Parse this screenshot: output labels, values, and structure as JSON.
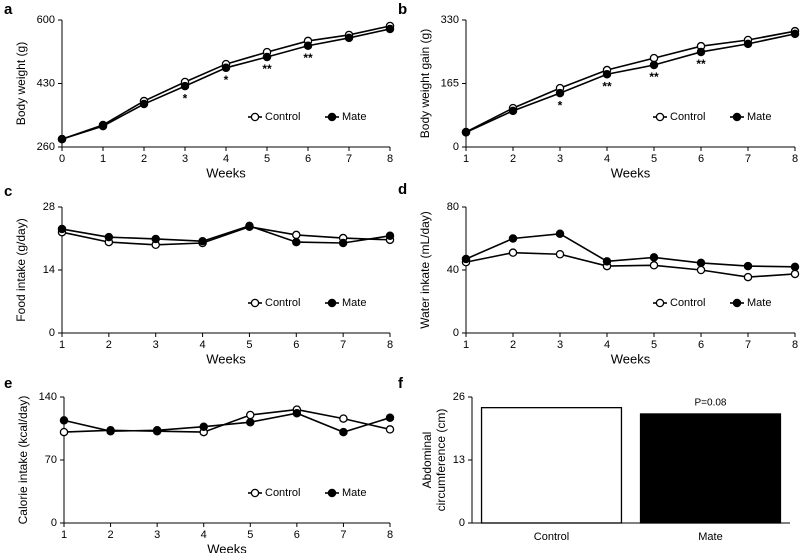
{
  "chart_data": [
    {
      "type": "line",
      "label": "a",
      "ylabel": "Body weight (g)",
      "xlabel": "Weeks",
      "x": [
        0,
        1,
        2,
        3,
        4,
        5,
        6,
        7,
        8
      ],
      "xlim": [
        0,
        8
      ],
      "xticks": [
        0,
        1,
        2,
        3,
        4,
        5,
        6,
        7,
        8
      ],
      "ylim": [
        260,
        600
      ],
      "yticks": [
        260,
        430,
        600
      ],
      "legend": "lower right",
      "series": [
        {
          "name": "Control",
          "color": "#000000",
          "marker_fill": "#ffffff",
          "values": [
            281,
            319,
            383,
            434,
            482,
            514,
            544,
            560,
            584
          ]
        },
        {
          "name": "Mate",
          "color": "#000000",
          "marker_fill": "#000000",
          "values": [
            281,
            316,
            375,
            423,
            472,
            501,
            531,
            552,
            576
          ]
        }
      ],
      "annotations": [
        {
          "x": 3,
          "text": "*"
        },
        {
          "x": 4,
          "text": "*"
        },
        {
          "x": 5,
          "text": "**"
        },
        {
          "x": 6,
          "text": "**"
        }
      ]
    },
    {
      "type": "line",
      "label": "b",
      "ylabel": "Body weight gain (g)",
      "xlabel": "Weeks",
      "x": [
        1,
        2,
        3,
        4,
        5,
        6,
        7,
        8
      ],
      "xlim": [
        1,
        8
      ],
      "xticks": [
        1,
        2,
        3,
        4,
        5,
        6,
        7,
        8
      ],
      "ylim": [
        0,
        330
      ],
      "yticks": [
        0,
        165,
        330
      ],
      "legend": "lower right",
      "series": [
        {
          "name": "Control",
          "color": "#000000",
          "marker_fill": "#ffffff",
          "values": [
            39,
            101,
            153,
            200,
            231,
            262,
            278,
            301
          ]
        },
        {
          "name": "Mate",
          "color": "#000000",
          "marker_fill": "#000000",
          "values": [
            38,
            94,
            140,
            189,
            213,
            247,
            268,
            294
          ]
        }
      ],
      "annotations": [
        {
          "x": 3,
          "text": "*"
        },
        {
          "x": 4,
          "text": "**"
        },
        {
          "x": 5,
          "text": "**"
        },
        {
          "x": 6,
          "text": "**"
        }
      ]
    },
    {
      "type": "line",
      "label": "c",
      "ylabel": "Food intake (g/day)",
      "xlabel": "Weeks",
      "x": [
        1,
        2,
        3,
        4,
        5,
        6,
        7,
        8
      ],
      "xlim": [
        1,
        8
      ],
      "xticks": [
        1,
        2,
        3,
        4,
        5,
        6,
        7,
        8
      ],
      "ylim": [
        0,
        28
      ],
      "yticks": [
        0,
        14,
        28
      ],
      "legend": "lower right",
      "series": [
        {
          "name": "Control",
          "color": "#000000",
          "marker_fill": "#ffffff",
          "values": [
            22.4,
            20.2,
            19.6,
            20.0,
            23.6,
            21.8,
            21.1,
            20.7
          ]
        },
        {
          "name": "Mate",
          "color": "#000000",
          "marker_fill": "#000000",
          "values": [
            23.1,
            21.3,
            20.9,
            20.4,
            23.8,
            20.2,
            20.0,
            21.6
          ]
        }
      ]
    },
    {
      "type": "line",
      "label": "d",
      "ylabel": "Water inkate (mL/day)",
      "xlabel": "Weeks",
      "x": [
        1,
        2,
        3,
        4,
        5,
        6,
        7,
        8
      ],
      "xlim": [
        1,
        8
      ],
      "xticks": [
        1,
        2,
        3,
        4,
        5,
        6,
        7,
        8
      ],
      "ylim": [
        0,
        80
      ],
      "yticks": [
        0,
        40,
        80
      ],
      "legend": "lower right",
      "series": [
        {
          "name": "Control",
          "color": "#000000",
          "marker_fill": "#ffffff",
          "values": [
            45,
            51,
            50,
            42.5,
            43,
            40,
            35.5,
            37.5
          ]
        },
        {
          "name": "Mate",
          "color": "#000000",
          "marker_fill": "#000000",
          "values": [
            47,
            60,
            63,
            45.5,
            48,
            44.5,
            42.5,
            42
          ]
        }
      ]
    },
    {
      "type": "line",
      "label": "e",
      "ylabel": "Calorie intake (kcal/day)",
      "xlabel": "Weeks",
      "x": [
        1,
        2,
        3,
        4,
        5,
        6,
        7,
        8
      ],
      "xlim": [
        1,
        8
      ],
      "xticks": [
        1,
        2,
        3,
        4,
        5,
        6,
        7,
        8
      ],
      "ylim": [
        0,
        140
      ],
      "yticks": [
        0,
        70,
        140
      ],
      "legend": "lower right",
      "series": [
        {
          "name": "Control",
          "color": "#000000",
          "marker_fill": "#ffffff",
          "values": [
            101,
            103,
            102,
            101,
            120,
            126,
            116,
            104
          ]
        },
        {
          "name": "Mate",
          "color": "#000000",
          "marker_fill": "#000000",
          "values": [
            114,
            102,
            103,
            107,
            112,
            122,
            101,
            117
          ]
        }
      ]
    },
    {
      "type": "bar",
      "label": "f",
      "ylabel": [
        "Abdominal",
        "circumference (cm)"
      ],
      "categories": [
        "Control",
        "Mate"
      ],
      "values": [
        23.8,
        22.5
      ],
      "colors": [
        "#ffffff",
        "#000000"
      ],
      "ylim": [
        0,
        26
      ],
      "yticks": [
        0,
        13,
        26
      ],
      "annotation": "P=0.08"
    }
  ]
}
